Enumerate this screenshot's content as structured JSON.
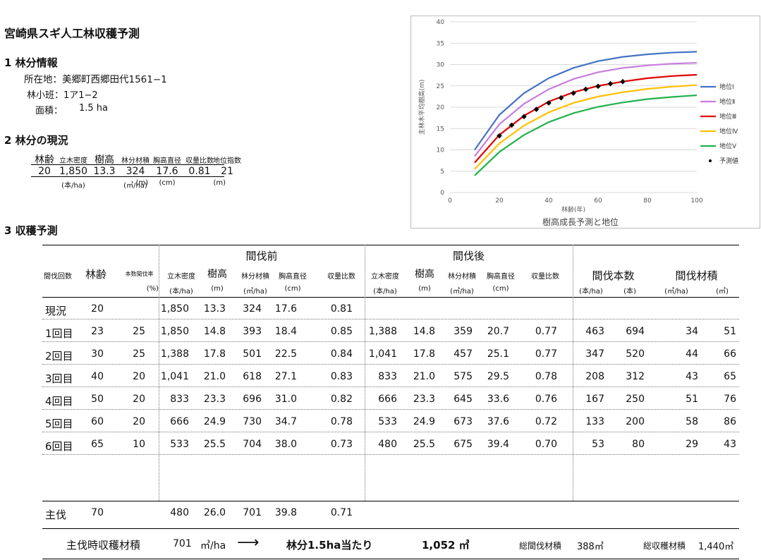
{
  "title": "宮崎県スギ人工林収穫予測",
  "section1": {
    "heading": "1 林分情報",
    "location": "所在地：美郷町西郷田代1561−1",
    "compartment": "林小班：1ア1−2",
    "area_label": "面積：",
    "area_value": "1.5 ha"
  },
  "section2": {
    "heading": "2 林分の現況",
    "headers": [
      "林齢",
      "立木密度",
      "樹高",
      "林分材積",
      "胸高直径",
      "収量比数",
      "地位指数"
    ],
    "values": [
      "20",
      "1,850",
      "13.3",
      "324",
      "17.6",
      "0.81",
      "21"
    ],
    "units": [
      "",
      "(本/ha)",
      "(m)",
      "(㎥/ha)",
      "(cm)",
      "",
      "(m)"
    ]
  },
  "section3": {
    "heading": "3 収穫予測",
    "group_before": "間伐前",
    "group_after": "間伐後",
    "group_count": "間伐本数",
    "group_volume": "間伐材積",
    "col_headers": [
      "間伐回数",
      "林齢",
      "本数間伐率",
      "立木密度",
      "樹高",
      "林分材積",
      "胸高直径",
      "収量比数",
      "立木密度",
      "樹高",
      "林分材積",
      "胸高直径",
      "収量比数",
      "",
      ""
    ],
    "col_units": [
      "",
      "",
      "(%)",
      "(本/ha)",
      "(m)",
      "(㎥/ha)",
      "(cm)",
      "",
      "(本/ha)",
      "(m)",
      "(㎥/ha)",
      "(cm)",
      "",
      "(本/ha)",
      "(本)",
      "(㎥/ha)",
      "(㎥)"
    ],
    "rows": [
      [
        "現況",
        "20",
        "",
        "1,850",
        "13.3",
        "324",
        "17.6",
        "0.81",
        "",
        "",
        "",
        "",
        "",
        "",
        "",
        "",
        ""
      ],
      [
        "1回目",
        "23",
        "25",
        "1,850",
        "14.8",
        "393",
        "18.4",
        "0.85",
        "1,388",
        "14.8",
        "359",
        "20.7",
        "0.77",
        "463",
        "694",
        "34",
        "51"
      ],
      [
        "2回目",
        "30",
        "25",
        "1,388",
        "17.8",
        "501",
        "22.5",
        "0.84",
        "1,041",
        "17.8",
        "457",
        "25.1",
        "0.77",
        "347",
        "520",
        "44",
        "66"
      ],
      [
        "3回目",
        "40",
        "20",
        "1,041",
        "21.0",
        "618",
        "27.1",
        "0.83",
        "833",
        "21.0",
        "575",
        "29.5",
        "0.78",
        "208",
        "312",
        "43",
        "65"
      ],
      [
        "4回目",
        "50",
        "20",
        "833",
        "23.3",
        "696",
        "31.0",
        "0.82",
        "666",
        "23.3",
        "645",
        "33.6",
        "0.76",
        "167",
        "250",
        "51",
        "76"
      ],
      [
        "5回目",
        "60",
        "20",
        "666",
        "24.9",
        "730",
        "34.7",
        "0.78",
        "533",
        "24.9",
        "673",
        "37.6",
        "0.72",
        "133",
        "200",
        "58",
        "86"
      ],
      [
        "6回目",
        "65",
        "10",
        "533",
        "25.5",
        "704",
        "38.0",
        "0.73",
        "480",
        "25.5",
        "675",
        "39.4",
        "0.70",
        "53",
        "80",
        "29",
        "43"
      ]
    ],
    "final_row": [
      "主伐",
      "70",
      "",
      "480",
      "26.0",
      "701",
      "39.8",
      "0.71"
    ],
    "summary": {
      "label": "主伐時収穫材積",
      "value": "701",
      "unit": "㎥/ha",
      "arrow": "⟶",
      "per_stand": "林分1.5ha当たり",
      "stand_value": "1,052 ㎥",
      "total_thinning_label": "総間伐材積",
      "total_thinning_value": "388㎥",
      "total_harvest_label": "総収穫材積",
      "total_harvest_value": "1,440㎥"
    }
  },
  "chart_data": {
    "type": "line",
    "title": "樹高成長予測と地位",
    "xlabel": "林齢(年)",
    "ylabel": "主林木平均樹高(m)",
    "xlim": [
      0,
      100
    ],
    "ylim": [
      0,
      40
    ],
    "xticks": [
      0,
      20,
      40,
      60,
      80,
      100
    ],
    "yticks": [
      0,
      5,
      10,
      15,
      20,
      25,
      30,
      35,
      40
    ],
    "grid": true,
    "legend_position": "right",
    "series": [
      {
        "name": "地位Ⅰ",
        "color": "#4472c4",
        "x": [
          10,
          20,
          30,
          40,
          50,
          60,
          70,
          80,
          90,
          100
        ],
        "y": [
          10.0,
          18.2,
          23.3,
          26.8,
          29.2,
          30.8,
          31.8,
          32.4,
          32.8,
          33.0
        ]
      },
      {
        "name": "地位Ⅱ",
        "color": "#c77dde",
        "x": [
          10,
          20,
          30,
          40,
          50,
          60,
          70,
          80,
          90,
          100
        ],
        "y": [
          8.5,
          16.0,
          20.8,
          24.2,
          26.6,
          28.2,
          29.2,
          29.8,
          30.2,
          30.4
        ]
      },
      {
        "name": "地位Ⅲ",
        "color": "#e00000",
        "x": [
          10,
          20,
          30,
          40,
          50,
          60,
          70,
          80,
          90,
          100
        ],
        "y": [
          7.0,
          13.5,
          18.0,
          21.3,
          23.5,
          25.0,
          26.0,
          26.8,
          27.3,
          27.6
        ]
      },
      {
        "name": "地位Ⅳ",
        "color": "#ffc000",
        "x": [
          10,
          20,
          30,
          40,
          50,
          60,
          70,
          80,
          90,
          100
        ],
        "y": [
          5.5,
          11.5,
          15.7,
          18.8,
          21.0,
          22.5,
          23.5,
          24.3,
          24.8,
          25.2
        ]
      },
      {
        "name": "地位Ⅴ",
        "color": "#22b14c",
        "x": [
          10,
          20,
          30,
          40,
          50,
          60,
          70,
          80,
          90,
          100
        ],
        "y": [
          4.0,
          9.5,
          13.5,
          16.5,
          18.6,
          20.1,
          21.1,
          21.9,
          22.4,
          22.8
        ]
      },
      {
        "name": "予測値",
        "color": "#000000",
        "marker": "diamond",
        "x": [
          20,
          25,
          30,
          35,
          40,
          45,
          50,
          55,
          60,
          65,
          70
        ],
        "y": [
          13.3,
          15.8,
          17.8,
          19.5,
          21.0,
          22.2,
          23.3,
          24.2,
          24.9,
          25.5,
          26.0
        ]
      }
    ]
  }
}
